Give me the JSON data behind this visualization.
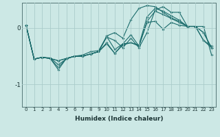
{
  "xlabel": "Humidex (Indice chaleur)",
  "background_color": "#cce8e5",
  "grid_color": "#aaccca",
  "line_color": "#1a6b6b",
  "xlim": [
    -0.5,
    23.5
  ],
  "ylim": [
    -1.4,
    0.45
  ],
  "yticks": [
    0,
    -1
  ],
  "xticks": [
    0,
    1,
    2,
    3,
    4,
    5,
    6,
    7,
    8,
    9,
    10,
    11,
    12,
    13,
    14,
    15,
    16,
    17,
    18,
    19,
    20,
    21,
    22,
    23
  ],
  "series": [
    [
      0.05,
      -0.55,
      -0.52,
      -0.53,
      -0.65,
      -0.55,
      -0.5,
      -0.48,
      -0.42,
      -0.4,
      -0.15,
      -0.38,
      -0.28,
      -0.12,
      -0.32,
      0.1,
      0.12,
      -0.02,
      0.1,
      0.05,
      0.03,
      0.03,
      -0.22,
      -0.32
    ],
    [
      0.05,
      -0.55,
      -0.52,
      -0.54,
      -0.7,
      -0.54,
      -0.5,
      -0.5,
      -0.46,
      -0.42,
      -0.14,
      -0.08,
      -0.18,
      0.15,
      0.35,
      0.4,
      0.38,
      0.28,
      0.18,
      0.12,
      0.03,
      0.03,
      0.03,
      -0.48
    ],
    [
      0.05,
      -0.55,
      -0.52,
      -0.54,
      -0.74,
      -0.54,
      -0.5,
      -0.5,
      -0.46,
      -0.42,
      -0.16,
      -0.22,
      -0.35,
      -0.18,
      -0.35,
      -0.08,
      0.32,
      0.38,
      0.28,
      0.28,
      0.03,
      0.03,
      -0.22,
      -0.35
    ],
    [
      0.05,
      -0.55,
      -0.52,
      -0.54,
      -0.58,
      -0.54,
      -0.5,
      -0.5,
      -0.46,
      -0.42,
      -0.26,
      -0.45,
      -0.3,
      -0.26,
      -0.3,
      0.2,
      0.35,
      0.3,
      0.22,
      0.14,
      0.03,
      0.03,
      -0.08,
      -0.35
    ],
    [
      0.05,
      -0.55,
      -0.52,
      -0.54,
      -0.58,
      -0.54,
      -0.5,
      -0.5,
      -0.46,
      -0.42,
      -0.28,
      -0.45,
      -0.28,
      -0.26,
      -0.32,
      0.12,
      0.3,
      0.24,
      0.17,
      0.1,
      0.03,
      0.03,
      -0.08,
      -0.35
    ]
  ]
}
